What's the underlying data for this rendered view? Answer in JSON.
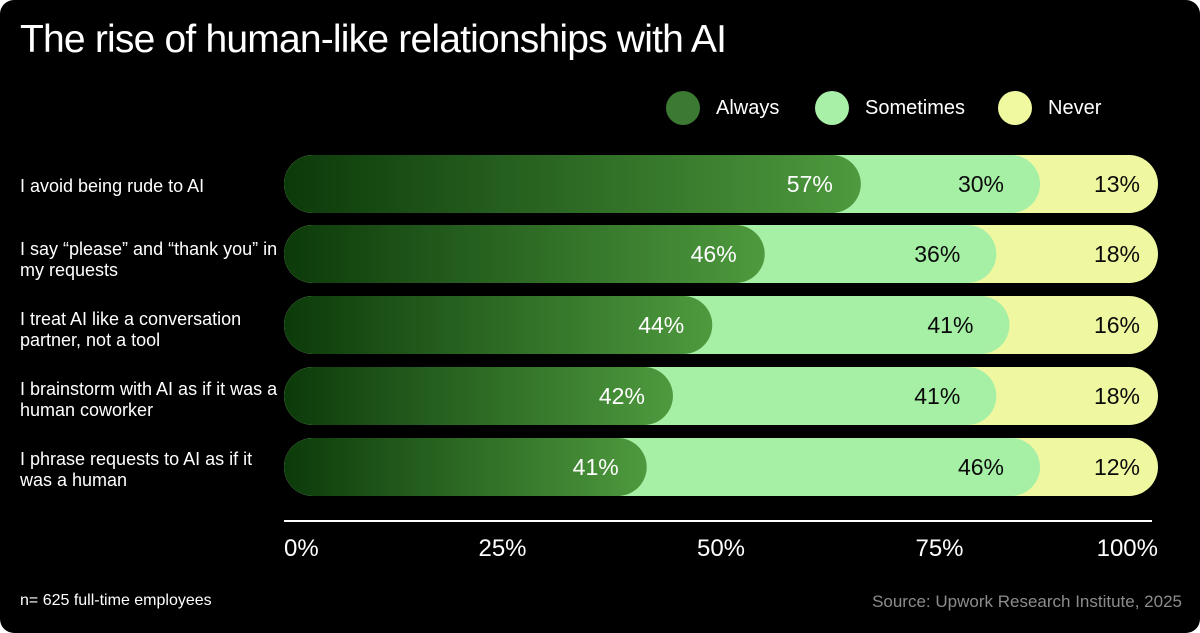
{
  "colors": {
    "background": "#000000",
    "always_dark": "#0c3a0a",
    "always_light": "#4e9a3e",
    "sometimes": "#a5f0a5",
    "never": "#eff7a0",
    "axis": "#ffffff",
    "source_text": "#8c8c8c"
  },
  "title": "The rise of human-like relationships with AI",
  "footnote": "n= 625 full-time employees",
  "source": "Source: Upwork Research Institute, 2025",
  "legend": [
    {
      "label": "Always",
      "color": "#3c7a34"
    },
    {
      "label": "Sometimes",
      "color": "#a8f0a8"
    },
    {
      "label": "Never",
      "color": "#f0f8a0"
    }
  ],
  "chart_data": {
    "type": "bar",
    "orientation": "horizontal",
    "stacked": true,
    "categories": [
      "I avoid being rude to AI",
      "I say “please” and “thank you” in my requests",
      "I treat AI like a conversation partner, not a tool",
      "I brainstorm with AI as if it was a human coworker",
      "I phrase requests to AI as if it was a human"
    ],
    "series": [
      {
        "name": "Always",
        "values": [
          57,
          46,
          44,
          42,
          41
        ],
        "labels": [
          "57%",
          "46%",
          "44%",
          "42%",
          "41%"
        ]
      },
      {
        "name": "Sometimes",
        "values": [
          30,
          36,
          41,
          41,
          46
        ],
        "labels": [
          "30%",
          "36%",
          "41%",
          "41%",
          "46%"
        ]
      },
      {
        "name": "Never",
        "values": [
          13,
          18,
          16,
          18,
          12
        ],
        "labels": [
          "13%",
          "18%",
          "16%",
          "18%",
          "12%"
        ]
      }
    ],
    "row_ends": [
      [
        66,
        86.5,
        100
      ],
      [
        55,
        81.5,
        100
      ],
      [
        49,
        83,
        100
      ],
      [
        44.5,
        81.5,
        100
      ],
      [
        41.5,
        86.5,
        100
      ]
    ],
    "xlim": [
      0,
      100
    ],
    "xticks": [
      "0%",
      "25%",
      "50%",
      "75%",
      "100%"
    ],
    "xtick_values": [
      0,
      25,
      50,
      75,
      100
    ]
  }
}
